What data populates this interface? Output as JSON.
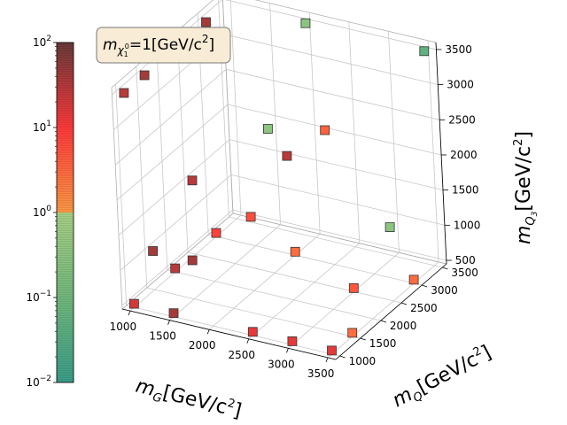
{
  "chart_data": {
    "type": "scatter",
    "annotation": {
      "prefix": "m",
      "sub_main": "χ",
      "sub_sub": "1",
      "sub_sup": "0",
      "suffix": "=1[GeV/c",
      "suffix_sup": "2",
      "suffix_end": "]"
    },
    "xlabel": {
      "main": "m",
      "sub": "G",
      "unit": "[GeV/c",
      "unit_sup": "2",
      "unit_end": "]"
    },
    "ylabel": {
      "main": "m",
      "sub": "Q",
      "unit": "[GeV/c",
      "unit_sup": "2",
      "unit_end": "]"
    },
    "zlabel": {
      "main": "m",
      "sub": "Q",
      "sub_sub": "3",
      "unit": "[GeV/c",
      "unit_sup": "2",
      "unit_end": "]"
    },
    "xlim": [
      900,
      3600
    ],
    "ylim": [
      900,
      3600
    ],
    "zlim": [
      450,
      3600
    ],
    "x_ticks": [
      1000,
      1500,
      2000,
      2500,
      3000,
      3500
    ],
    "y_ticks": [
      1000,
      1500,
      2000,
      2500,
      3000,
      3500
    ],
    "z_ticks": [
      500,
      1000,
      1500,
      2000,
      2500,
      3000,
      3500
    ],
    "colorbar": {
      "scale": "log",
      "min": 0.01,
      "max": 100,
      "ticks": [
        {
          "value": 0.01,
          "base": "10",
          "exp": "−2"
        },
        {
          "value": 0.1,
          "base": "10",
          "exp": "−1"
        },
        {
          "value": 1,
          "base": "10",
          "exp": "0"
        },
        {
          "value": 10,
          "base": "10",
          "exp": "1"
        },
        {
          "value": 100,
          "base": "10",
          "exp": "2"
        }
      ],
      "color_stops": [
        {
          "value": 0.01,
          "color": "#3a9e8a"
        },
        {
          "value": 0.1,
          "color": "#72ba7c"
        },
        {
          "value": 0.999,
          "color": "#a8d185"
        },
        {
          "value": 1,
          "color": "#ff9944"
        },
        {
          "value": 10,
          "color": "#ff3a3a"
        },
        {
          "value": 100,
          "color": "#6a3a3a"
        }
      ]
    },
    "points": [
      {
        "x": 1000,
        "y": 1000,
        "z": 3500,
        "c": 30
      },
      {
        "x": 1000,
        "y": 1000,
        "z": 500,
        "c": 20
      },
      {
        "x": 1000,
        "y": 1500,
        "z": 3500,
        "c": 40
      },
      {
        "x": 1000,
        "y": 1500,
        "z": 1000,
        "c": 40
      },
      {
        "x": 1000,
        "y": 2000,
        "z": 3500,
        "c": 40
      },
      {
        "x": 1000,
        "y": 2000,
        "z": 500,
        "c": 30
      },
      {
        "x": 1000,
        "y": 2500,
        "z": 3500,
        "c": 8
      },
      {
        "x": 1000,
        "y": 2500,
        "z": 1500,
        "c": 30
      },
      {
        "x": 1000,
        "y": 3000,
        "z": 3500,
        "c": 40
      },
      {
        "x": 1000,
        "y": 3000,
        "z": 500,
        "c": 8
      },
      {
        "x": 1500,
        "y": 1000,
        "z": 500,
        "c": 40
      },
      {
        "x": 1500,
        "y": 1500,
        "z": 1000,
        "c": 40
      },
      {
        "x": 2000,
        "y": 2000,
        "z": 1500,
        "c": 6
      },
      {
        "x": 2000,
        "y": 2500,
        "z": 2500,
        "c": 0.3
      },
      {
        "x": 2000,
        "y": 3000,
        "z": 500,
        "c": 3
      },
      {
        "x": 2000,
        "y": 3500,
        "z": 3500,
        "c": 0.3
      },
      {
        "x": 2500,
        "y": 1000,
        "z": 500,
        "c": 15
      },
      {
        "x": 2500,
        "y": 2000,
        "z": 2500,
        "c": 30
      },
      {
        "x": 3000,
        "y": 1000,
        "z": 500,
        "c": 15
      },
      {
        "x": 3000,
        "y": 2000,
        "z": 3000,
        "c": 4
      },
      {
        "x": 3000,
        "y": 2500,
        "z": 500,
        "c": 5
      },
      {
        "x": 3500,
        "y": 1000,
        "z": 500,
        "c": 15
      },
      {
        "x": 3500,
        "y": 1500,
        "z": 500,
        "c": 3
      },
      {
        "x": 3500,
        "y": 2500,
        "z": 1500,
        "c": 0.3
      },
      {
        "x": 3500,
        "y": 3000,
        "z": 500,
        "c": 3
      },
      {
        "x": 3500,
        "y": 3500,
        "z": 3500,
        "c": 0.05
      }
    ]
  }
}
